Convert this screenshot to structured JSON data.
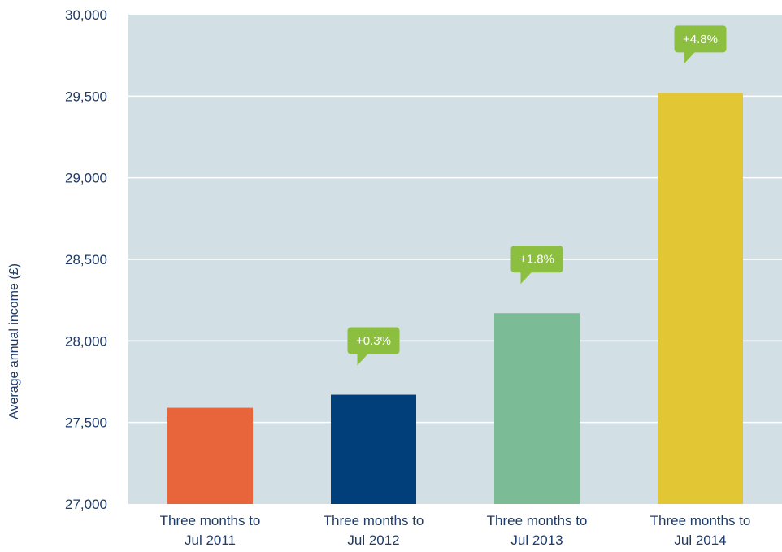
{
  "chart_data": {
    "type": "bar",
    "title": "",
    "xlabel": "",
    "ylabel": "Average annual income (£)",
    "ylim": [
      27000,
      30000
    ],
    "yticks": [
      27000,
      27500,
      28000,
      28500,
      29000,
      29500,
      30000
    ],
    "ytick_labels": [
      "27,000",
      "27,500",
      "28,000",
      "28,500",
      "29,000",
      "29,500",
      "30,000"
    ],
    "grid": true,
    "categories": [
      [
        "Three months to",
        "Jul 2011"
      ],
      [
        "Three months to",
        "Jul 2012"
      ],
      [
        "Three months to",
        "Jul 2013"
      ],
      [
        "Three months to",
        "Jul 2014"
      ]
    ],
    "values": [
      27590,
      27670,
      28170,
      29520
    ],
    "bar_colors": [
      "#e8643a",
      "#003f7a",
      "#7bbc96",
      "#e3c633"
    ],
    "annotations": [
      "",
      "+0.3%",
      "+1.8%",
      "+4.8%"
    ],
    "colors": {
      "plot_background": "#d2e0e6",
      "gridline": "#ffffff",
      "callout": "#8cbf3f",
      "text": "#1d3b6b"
    }
  }
}
